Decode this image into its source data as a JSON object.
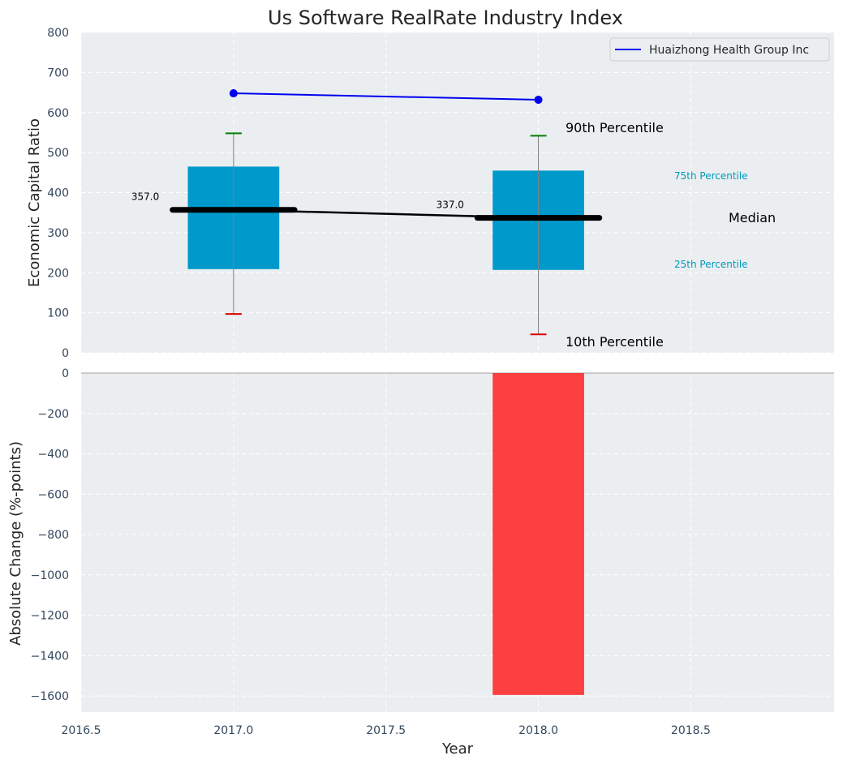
{
  "chart_data": {
    "type": "box",
    "title": "Us Software RealRate Industry Index",
    "xlabel": "Year",
    "xlim": [
      2016.5,
      2018.97
    ],
    "x_ticks": [
      2016.5,
      2017.0,
      2017.5,
      2018.0,
      2018.5
    ],
    "x_tick_labels": [
      "2016.5",
      "2017.0",
      "2017.5",
      "2018.0",
      "2018.5"
    ],
    "top": {
      "ylabel": "Economic Capital Ratio",
      "ylim": [
        0,
        800
      ],
      "y_ticks": [
        0,
        100,
        200,
        300,
        400,
        500,
        600,
        700,
        800
      ],
      "y_tick_labels": [
        "0",
        "100",
        "200",
        "300",
        "400",
        "500",
        "600",
        "700",
        "800"
      ],
      "boxes": [
        {
          "x": 2017,
          "p10": 97,
          "p25": 209,
          "median": 357,
          "p75": 465,
          "p90": 548,
          "median_label": "357.0"
        },
        {
          "x": 2018,
          "p10": 46,
          "p25": 207,
          "median": 337,
          "p75": 455,
          "p90": 542,
          "median_label": "337.0"
        }
      ],
      "company_series": {
        "name": "Huaizhong Health Group Inc",
        "x": [
          2017,
          2018
        ],
        "values": [
          648,
          632
        ],
        "color": "#0000ee"
      },
      "legend": {
        "position": "top-right",
        "entries": [
          "Huaizhong Health Group Inc"
        ]
      },
      "annotations": {
        "p90": "90th Percentile",
        "p75": "75th Percentile",
        "median": "Median",
        "p25": "25th Percentile",
        "p10": "10th Percentile"
      },
      "colors": {
        "box": "#0099cc",
        "median": "#000000",
        "p90_cap": "#008000",
        "p10_cap": "#dd0000",
        "whisker": "#808080",
        "accent_text": "#0099bb"
      }
    },
    "bottom": {
      "type": "bar",
      "ylabel": "Absolute Change (%-points)",
      "ylim": [
        -1680,
        0
      ],
      "y_ticks": [
        0,
        -200,
        -400,
        -600,
        -800,
        -1000,
        -1200,
        -1400,
        -1600
      ],
      "y_tick_labels": [
        "0",
        "−200",
        "−400",
        "−600",
        "−800",
        "−1000",
        "−1200",
        "−1400",
        "−1600"
      ],
      "x": [
        2018
      ],
      "values": [
        -1595
      ],
      "color": "#ff2020"
    },
    "grid": true
  }
}
